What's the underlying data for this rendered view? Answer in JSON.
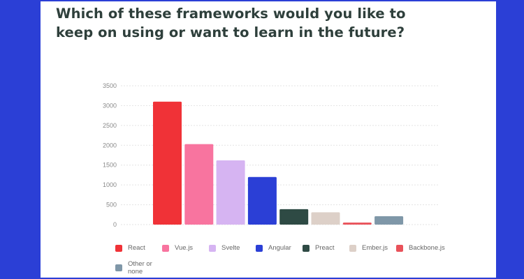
{
  "chart_data": {
    "type": "bar",
    "title": "Which of these frameworks would you like to keep on using or want to learn in the future?",
    "categories": [
      "React",
      "Vue.js",
      "Svelte",
      "Angular",
      "Preact",
      "Ember.js",
      "Backbone.js",
      "Other or none"
    ],
    "values": [
      3100,
      2030,
      1620,
      1200,
      390,
      310,
      50,
      210
    ],
    "colors": [
      "#f03237",
      "#f8749f",
      "#d6b4f2",
      "#2b3fd6",
      "#2e4a44",
      "#ddd0c8",
      "#e9525a",
      "#7f97a8"
    ],
    "ylim": [
      0,
      3500
    ],
    "yticks": [
      0,
      500,
      1000,
      1500,
      2000,
      2500,
      3000,
      3500
    ],
    "grid": true,
    "legend": "bottom",
    "xlabel": "",
    "ylabel": ""
  }
}
